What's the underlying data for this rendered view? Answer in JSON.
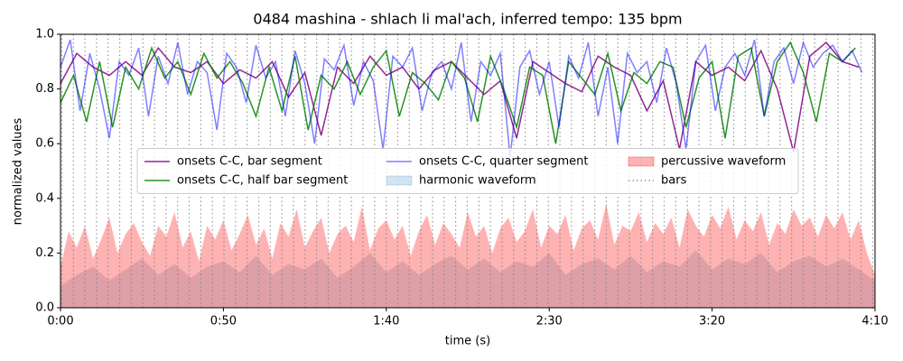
{
  "chart_data": {
    "type": "line",
    "title": "0484 mashina - shlach li mal'ach, inferred tempo: 135 bpm",
    "xlabel": "time (s)",
    "ylabel": "normalized values",
    "xlim": [
      0,
      250
    ],
    "ylim": [
      0,
      1
    ],
    "xticks": [
      {
        "value": 0,
        "label": "0:00"
      },
      {
        "value": 50,
        "label": "0:50"
      },
      {
        "value": 100,
        "label": "1:40"
      },
      {
        "value": 150,
        "label": "2:30"
      },
      {
        "value": 200,
        "label": "3:20"
      },
      {
        "value": 250,
        "label": "4:10"
      }
    ],
    "yticks": [
      {
        "value": 0,
        "label": "0.0"
      },
      0.2,
      0.4,
      0.6,
      0.8,
      {
        "value": 1,
        "label": "1.0"
      }
    ],
    "legend": "center",
    "series": [
      {
        "name": "onsets C-C, bar segment",
        "kind": "line",
        "color": "#800080",
        "opacity": 0.85,
        "x": [
          0,
          5,
          10,
          15,
          20,
          25,
          30,
          35,
          40,
          45,
          50,
          55,
          60,
          65,
          70,
          75,
          80,
          85,
          90,
          95,
          100,
          105,
          110,
          115,
          120,
          125,
          130,
          135,
          140,
          145,
          150,
          155,
          160,
          165,
          170,
          175,
          180,
          185,
          190,
          195,
          200,
          205,
          210,
          215,
          220,
          225,
          230,
          235,
          240,
          245
        ],
        "values": [
          0.82,
          0.93,
          0.88,
          0.85,
          0.9,
          0.85,
          0.95,
          0.88,
          0.86,
          0.9,
          0.82,
          0.87,
          0.84,
          0.9,
          0.77,
          0.86,
          0.63,
          0.88,
          0.82,
          0.92,
          0.85,
          0.88,
          0.8,
          0.87,
          0.9,
          0.84,
          0.78,
          0.83,
          0.62,
          0.9,
          0.86,
          0.82,
          0.79,
          0.92,
          0.88,
          0.85,
          0.72,
          0.83,
          0.58,
          0.9,
          0.85,
          0.88,
          0.83,
          0.94,
          0.8,
          0.57,
          0.92,
          0.97,
          0.9,
          0.88
        ]
      },
      {
        "name": "onsets C-C, half bar segment",
        "kind": "line",
        "color": "#008000",
        "opacity": 0.85,
        "x": [
          0,
          4,
          8,
          12,
          16,
          20,
          24,
          28,
          32,
          36,
          40,
          44,
          48,
          52,
          56,
          60,
          64,
          68,
          72,
          76,
          80,
          84,
          88,
          92,
          96,
          100,
          104,
          108,
          112,
          116,
          120,
          124,
          128,
          132,
          136,
          140,
          144,
          148,
          152,
          156,
          160,
          164,
          168,
          172,
          176,
          180,
          184,
          188,
          192,
          196,
          200,
          204,
          208,
          212,
          216,
          220,
          224,
          228,
          232,
          236,
          240,
          244
        ],
        "values": [
          0.75,
          0.85,
          0.68,
          0.9,
          0.66,
          0.88,
          0.8,
          0.95,
          0.84,
          0.9,
          0.78,
          0.93,
          0.84,
          0.9,
          0.82,
          0.7,
          0.88,
          0.72,
          0.92,
          0.65,
          0.85,
          0.8,
          0.9,
          0.78,
          0.88,
          0.94,
          0.7,
          0.86,
          0.82,
          0.76,
          0.9,
          0.84,
          0.68,
          0.92,
          0.8,
          0.66,
          0.88,
          0.85,
          0.6,
          0.9,
          0.84,
          0.78,
          0.93,
          0.72,
          0.86,
          0.82,
          0.9,
          0.88,
          0.66,
          0.84,
          0.9,
          0.62,
          0.92,
          0.95,
          0.7,
          0.9,
          0.97,
          0.86,
          0.68,
          0.93,
          0.9,
          0.95
        ]
      },
      {
        "name": "onsets C-C, quarter segment",
        "kind": "line",
        "color": "#0000ff",
        "opacity": 0.5,
        "x": [
          0,
          3,
          6,
          9,
          12,
          15,
          18,
          21,
          24,
          27,
          30,
          33,
          36,
          39,
          42,
          45,
          48,
          51,
          54,
          57,
          60,
          63,
          66,
          69,
          72,
          75,
          78,
          81,
          84,
          87,
          90,
          93,
          96,
          99,
          102,
          105,
          108,
          111,
          114,
          117,
          120,
          123,
          126,
          129,
          132,
          135,
          138,
          141,
          144,
          147,
          150,
          153,
          156,
          159,
          162,
          165,
          168,
          171,
          174,
          177,
          180,
          183,
          186,
          189,
          192,
          195,
          198,
          201,
          204,
          207,
          210,
          213,
          216,
          219,
          222,
          225,
          228,
          231,
          234,
          237,
          240,
          243,
          246
        ],
        "values": [
          0.88,
          0.98,
          0.72,
          0.93,
          0.8,
          0.62,
          0.9,
          0.85,
          0.95,
          0.7,
          0.92,
          0.82,
          0.97,
          0.78,
          0.9,
          0.86,
          0.65,
          0.93,
          0.88,
          0.75,
          0.96,
          0.84,
          0.9,
          0.7,
          0.94,
          0.82,
          0.6,
          0.91,
          0.87,
          0.96,
          0.74,
          0.9,
          0.83,
          0.58,
          0.92,
          0.88,
          0.95,
          0.72,
          0.86,
          0.9,
          0.8,
          0.97,
          0.68,
          0.9,
          0.85,
          0.93,
          0.55,
          0.88,
          0.94,
          0.78,
          0.9,
          0.66,
          0.92,
          0.84,
          0.97,
          0.7,
          0.88,
          0.6,
          0.93,
          0.86,
          0.9,
          0.75,
          0.95,
          0.82,
          0.58,
          0.9,
          0.96,
          0.72,
          0.88,
          0.93,
          0.85,
          0.98,
          0.7,
          0.9,
          0.95,
          0.82,
          0.97,
          0.88,
          0.93,
          0.96,
          0.9,
          0.94,
          0.86
        ]
      },
      {
        "name": "harmonic waveform",
        "kind": "area",
        "color": "#1f77b4",
        "opacity": 0.2,
        "x": [
          0,
          5,
          10,
          15,
          20,
          25,
          30,
          35,
          40,
          45,
          50,
          55,
          60,
          65,
          70,
          75,
          80,
          85,
          90,
          95,
          100,
          105,
          110,
          115,
          120,
          125,
          130,
          135,
          140,
          145,
          150,
          155,
          160,
          165,
          170,
          175,
          180,
          185,
          190,
          195,
          200,
          205,
          210,
          215,
          220,
          225,
          230,
          235,
          240,
          245,
          250
        ],
        "values": [
          0.08,
          0.12,
          0.15,
          0.1,
          0.14,
          0.18,
          0.12,
          0.16,
          0.11,
          0.15,
          0.17,
          0.13,
          0.19,
          0.12,
          0.16,
          0.14,
          0.18,
          0.11,
          0.15,
          0.2,
          0.13,
          0.17,
          0.12,
          0.16,
          0.19,
          0.14,
          0.18,
          0.13,
          0.17,
          0.15,
          0.2,
          0.12,
          0.16,
          0.18,
          0.14,
          0.19,
          0.13,
          0.17,
          0.15,
          0.21,
          0.14,
          0.18,
          0.16,
          0.2,
          0.13,
          0.17,
          0.19,
          0.15,
          0.18,
          0.14,
          0.1
        ]
      },
      {
        "name": "percussive waveform",
        "kind": "area",
        "color": "#ff0000",
        "opacity": 0.3,
        "x": [
          0,
          2.5,
          5,
          7.5,
          10,
          12.5,
          15,
          17.5,
          20,
          22.5,
          25,
          27.5,
          30,
          32.5,
          35,
          37.5,
          40,
          42.5,
          45,
          47.5,
          50,
          52.5,
          55,
          57.5,
          60,
          62.5,
          65,
          67.5,
          70,
          72.5,
          75,
          77.5,
          80,
          82.5,
          85,
          87.5,
          90,
          92.5,
          95,
          97.5,
          100,
          102.5,
          105,
          107.5,
          110,
          112.5,
          115,
          117.5,
          120,
          122.5,
          125,
          127.5,
          130,
          132.5,
          135,
          137.5,
          140,
          142.5,
          145,
          147.5,
          150,
          152.5,
          155,
          157.5,
          160,
          162.5,
          165,
          167.5,
          170,
          172.5,
          175,
          177.5,
          180,
          182.5,
          185,
          187.5,
          190,
          192.5,
          195,
          197.5,
          200,
          202.5,
          205,
          207.5,
          210,
          212.5,
          215,
          217.5,
          220,
          222.5,
          225,
          227.5,
          230,
          232.5,
          235,
          237.5,
          240,
          242.5,
          245,
          247.5,
          250
        ],
        "values": [
          0.15,
          0.28,
          0.22,
          0.3,
          0.18,
          0.25,
          0.33,
          0.2,
          0.27,
          0.31,
          0.24,
          0.19,
          0.3,
          0.26,
          0.35,
          0.22,
          0.28,
          0.17,
          0.3,
          0.25,
          0.32,
          0.21,
          0.27,
          0.34,
          0.23,
          0.29,
          0.18,
          0.31,
          0.26,
          0.36,
          0.22,
          0.28,
          0.33,
          0.2,
          0.27,
          0.3,
          0.24,
          0.37,
          0.21,
          0.29,
          0.32,
          0.25,
          0.3,
          0.19,
          0.28,
          0.34,
          0.23,
          0.31,
          0.27,
          0.22,
          0.35,
          0.26,
          0.3,
          0.2,
          0.29,
          0.33,
          0.24,
          0.28,
          0.36,
          0.22,
          0.3,
          0.27,
          0.34,
          0.21,
          0.29,
          0.32,
          0.25,
          0.38,
          0.23,
          0.3,
          0.28,
          0.35,
          0.24,
          0.31,
          0.27,
          0.33,
          0.22,
          0.36,
          0.3,
          0.26,
          0.34,
          0.29,
          0.37,
          0.25,
          0.32,
          0.28,
          0.35,
          0.23,
          0.31,
          0.27,
          0.36,
          0.3,
          0.33,
          0.26,
          0.34,
          0.29,
          0.35,
          0.25,
          0.32,
          0.2,
          0.12
        ]
      },
      {
        "name": "bars",
        "kind": "vline",
        "color": "#808080",
        "opacity": 0.8,
        "x": [
          0.4,
          3.96,
          7.51,
          11.07,
          14.62,
          18.18,
          21.73,
          25.29,
          28.84,
          32.4,
          35.96,
          39.51,
          43.07,
          46.62,
          50.18,
          53.73,
          57.29,
          60.84,
          64.4,
          67.96,
          71.51,
          75.07,
          78.62,
          82.18,
          85.73,
          89.29,
          92.84,
          96.4,
          99.96,
          103.51,
          107.07,
          110.62,
          114.18,
          117.73,
          121.29,
          124.84,
          128.4,
          131.96,
          135.51,
          139.07,
          142.62,
          146.18,
          149.73,
          153.29,
          156.84,
          160.4,
          163.96,
          167.51,
          171.07,
          174.62,
          178.18,
          181.73,
          185.29,
          188.84,
          192.4,
          195.96,
          199.51,
          203.07,
          206.62,
          210.18,
          213.73,
          217.29,
          220.84,
          224.4,
          227.96,
          231.51,
          235.07,
          238.62,
          242.18,
          245.73,
          249.29
        ]
      }
    ]
  }
}
